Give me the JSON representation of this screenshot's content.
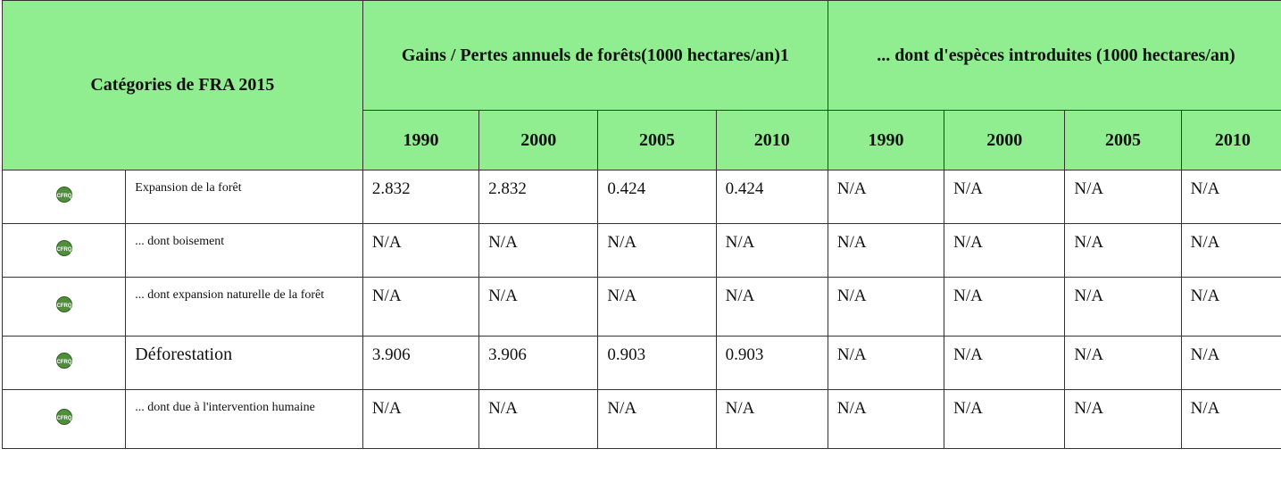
{
  "table": {
    "category_header": "Catégories de FRA 2015",
    "group_headers": [
      "Gains / Pertes annuels de forêts(1000 hectares/an)1",
      "... dont d'espèces introduites (1000 hectares/an)"
    ],
    "years": [
      "1990",
      "2000",
      "2005",
      "2010",
      "1990",
      "2000",
      "2005",
      "2010"
    ],
    "icon_label": "CFRQ",
    "rows": [
      {
        "label": "Expansion de la forêt",
        "values": [
          2.832,
          2.832,
          0.424,
          0.424,
          "N/A",
          "N/A",
          "N/A",
          "N/A"
        ]
      },
      {
        "label": "... dont boisement",
        "values": [
          "N/A",
          "N/A",
          "N/A",
          "N/A",
          "N/A",
          "N/A",
          "N/A",
          "N/A"
        ]
      },
      {
        "label": "... dont expansion naturelle de la forêt",
        "values": [
          "N/A",
          "N/A",
          "N/A",
          "N/A",
          "N/A",
          "N/A",
          "N/A",
          "N/A"
        ]
      },
      {
        "label": "Déforestation",
        "values": [
          3.906,
          3.906,
          0.903,
          0.903,
          "N/A",
          "N/A",
          "N/A",
          "N/A"
        ]
      },
      {
        "label": "... dont due à l'intervention humaine",
        "values": [
          "N/A",
          "N/A",
          "N/A",
          "N/A",
          "N/A",
          "N/A",
          "N/A",
          "N/A"
        ]
      }
    ]
  }
}
